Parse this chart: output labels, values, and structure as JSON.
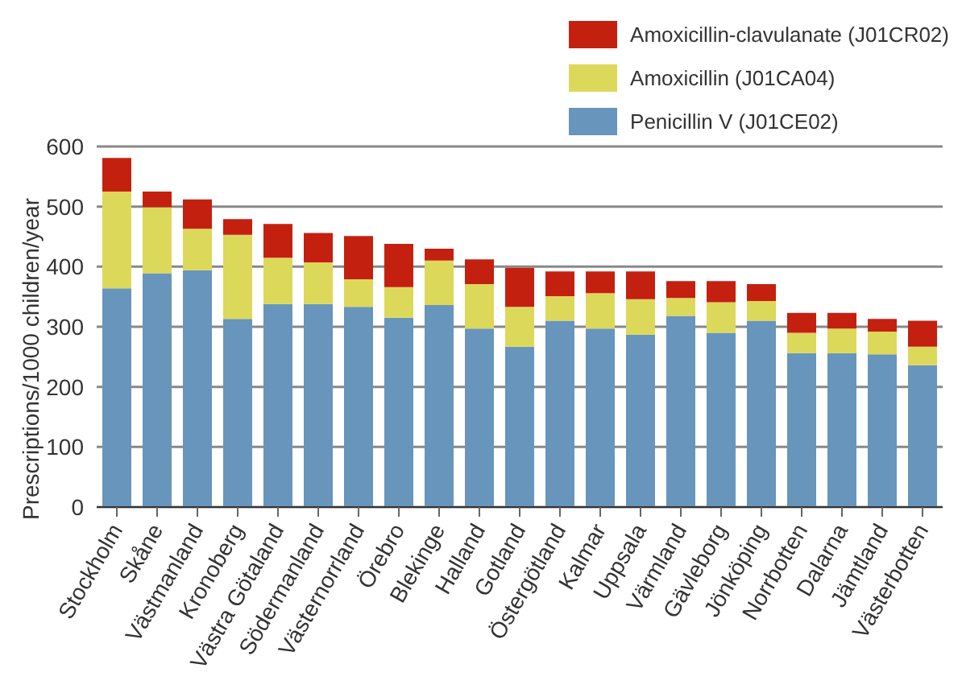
{
  "chart_data": {
    "type": "bar",
    "stacked": true,
    "ylabel": "Prescriptions/1000 children/year",
    "categories": [
      "Stockholm",
      "Skåne",
      "Västmanland",
      "Kronoberg",
      "Västra Götaland",
      "Södermanland",
      "Västernorrland",
      "Örebro",
      "Blekinge",
      "Halland",
      "Gotland",
      "Östergötland",
      "Kalmar",
      "Uppsala",
      "Värmland",
      "Gävleborg",
      "Jönköping",
      "Norrbotten",
      "Dalarna",
      "Jämtland",
      "Västerbotten"
    ],
    "series": [
      {
        "name": "Penicillin V (J01CE02)",
        "color": "#6795bb",
        "values": [
          364,
          389,
          394,
          313,
          338,
          338,
          333,
          315,
          336,
          297,
          267,
          310,
          297,
          287,
          318,
          290,
          310,
          256,
          256,
          254,
          236
        ]
      },
      {
        "name": "Amoxicillin (J01CA04)",
        "color": "#dcd85a",
        "values": [
          161,
          110,
          69,
          140,
          77,
          69,
          46,
          51,
          74,
          74,
          66,
          41,
          59,
          59,
          30,
          51,
          33,
          34,
          41,
          38,
          31
        ]
      },
      {
        "name": "Amoxicillin-clavulanate (J01CR02)",
        "color": "#c42010",
        "values": [
          56,
          26,
          49,
          26,
          56,
          49,
          72,
          72,
          20,
          41,
          65,
          41,
          36,
          46,
          28,
          35,
          28,
          33,
          26,
          21,
          43
        ]
      }
    ],
    "ylim": [
      0,
      600
    ],
    "yticks": [
      0,
      100,
      200,
      300,
      400,
      500,
      600
    ],
    "grid": "y",
    "legend": "top right"
  }
}
